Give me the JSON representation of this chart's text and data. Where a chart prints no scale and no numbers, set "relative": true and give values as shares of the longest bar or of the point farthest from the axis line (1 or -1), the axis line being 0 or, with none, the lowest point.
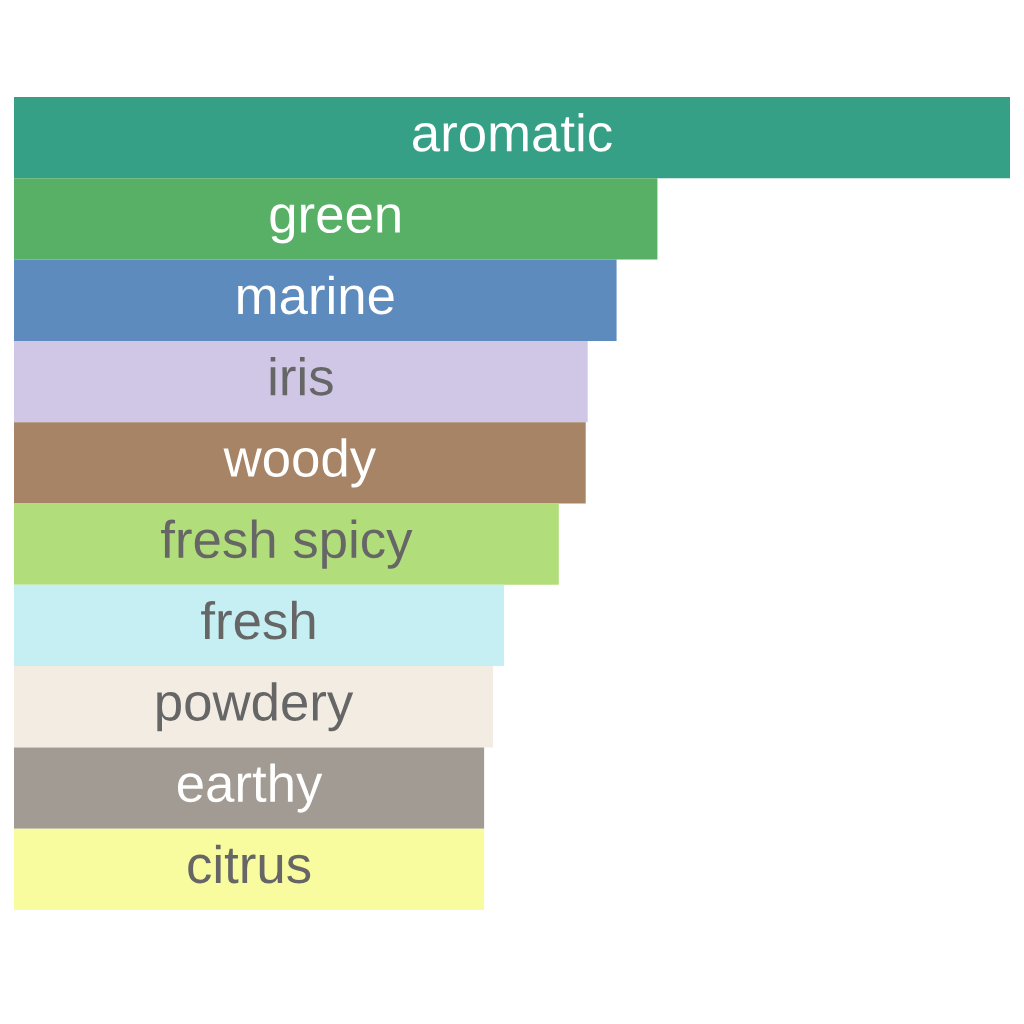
{
  "chart_data": {
    "type": "bar",
    "orientation": "horizontal",
    "relative": true,
    "categories": [
      "aromatic",
      "green",
      "marine",
      "iris",
      "woody",
      "fresh spicy",
      "fresh",
      "powdery",
      "earthy",
      "citrus"
    ],
    "values": [
      1,
      0.646,
      0.605,
      0.576,
      0.574,
      0.547,
      0.492,
      0.481,
      0.472,
      0.472
    ],
    "colors": [
      "#35a086",
      "#57b065",
      "#5e8bbd",
      "#d0c6e6",
      "#a78465",
      "#b1de7a",
      "#c5eff3",
      "#f3ece2",
      "#a29b93",
      "#f8fb9e"
    ]
  }
}
